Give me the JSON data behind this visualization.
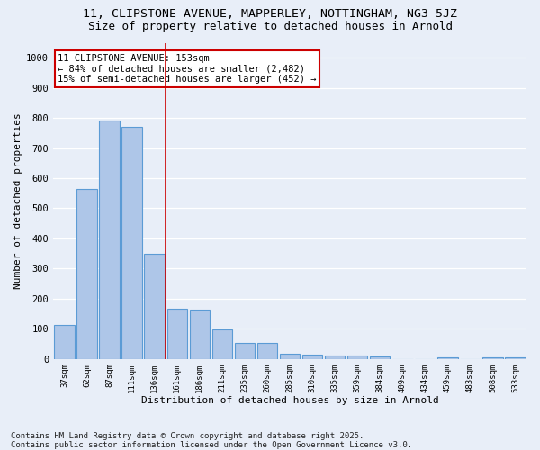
{
  "title1": "11, CLIPSTONE AVENUE, MAPPERLEY, NOTTINGHAM, NG3 5JZ",
  "title2": "Size of property relative to detached houses in Arnold",
  "xlabel": "Distribution of detached houses by size in Arnold",
  "ylabel": "Number of detached properties",
  "categories": [
    "37sqm",
    "62sqm",
    "87sqm",
    "111sqm",
    "136sqm",
    "161sqm",
    "186sqm",
    "211sqm",
    "235sqm",
    "260sqm",
    "285sqm",
    "310sqm",
    "335sqm",
    "359sqm",
    "384sqm",
    "409sqm",
    "434sqm",
    "459sqm",
    "483sqm",
    "508sqm",
    "533sqm"
  ],
  "values": [
    112,
    565,
    792,
    770,
    350,
    168,
    163,
    98,
    52,
    52,
    18,
    13,
    12,
    10,
    8,
    0,
    0,
    5,
    0,
    5,
    5
  ],
  "bar_color": "#aec6e8",
  "bar_edge_color": "#5b9bd5",
  "vline_x": 4.5,
  "vline_color": "#cc0000",
  "annotation_line1": "11 CLIPSTONE AVENUE: 153sqm",
  "annotation_line2": "← 84% of detached houses are smaller (2,482)",
  "annotation_line3": "15% of semi-detached houses are larger (452) →",
  "annotation_box_color": "#ffffff",
  "annotation_box_edge_color": "#cc0000",
  "ylim": [
    0,
    1050
  ],
  "yticks": [
    0,
    100,
    200,
    300,
    400,
    500,
    600,
    700,
    800,
    900,
    1000
  ],
  "background_color": "#e8eef8",
  "grid_color": "#ffffff",
  "footer1": "Contains HM Land Registry data © Crown copyright and database right 2025.",
  "footer2": "Contains public sector information licensed under the Open Government Licence v3.0.",
  "title1_fontsize": 9.5,
  "title2_fontsize": 9,
  "annotation_fontsize": 7.5,
  "footer_fontsize": 6.5,
  "xlabel_fontsize": 8,
  "ylabel_fontsize": 8
}
